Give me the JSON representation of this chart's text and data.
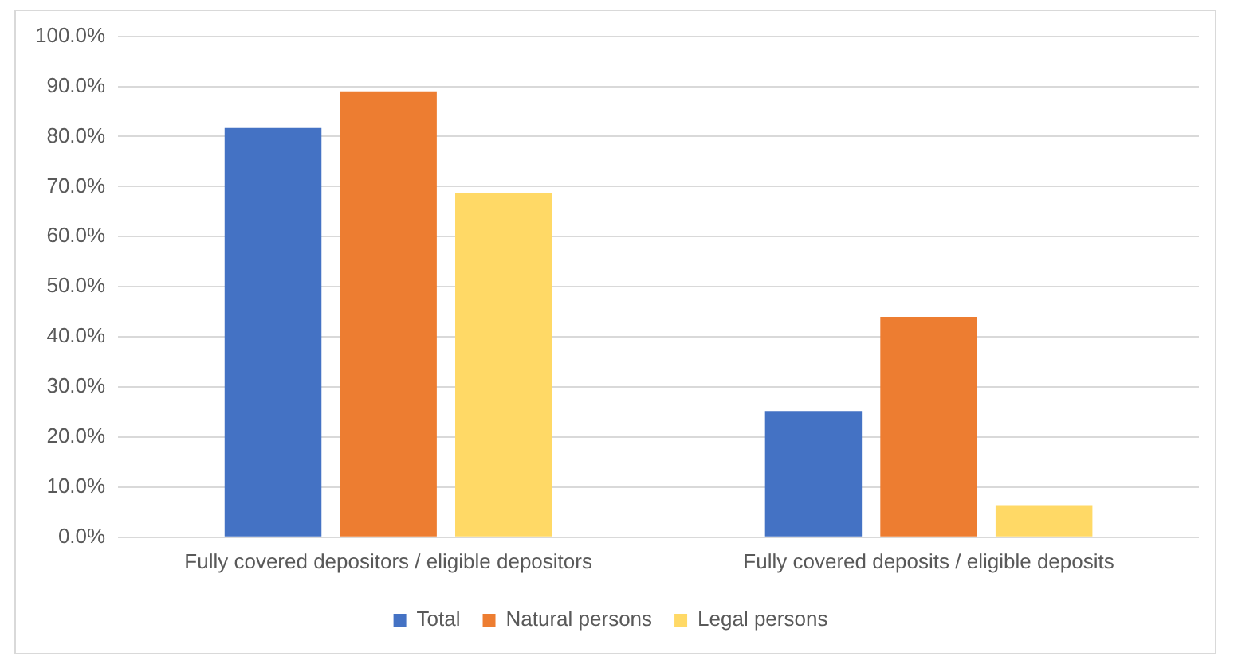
{
  "chart_data": {
    "type": "bar",
    "categories": [
      "Fully covered depositors / eligible depositors",
      "Fully covered deposits / eligible deposits"
    ],
    "series": [
      {
        "name": "Total",
        "color": "#4472c4",
        "values": [
          81.7,
          25.2
        ]
      },
      {
        "name": "Natural persons",
        "color": "#ed7d31",
        "values": [
          89.0,
          44.0
        ]
      },
      {
        "name": "Legal persons",
        "color": "#ffd966",
        "values": [
          68.8,
          6.4
        ]
      }
    ],
    "ylim": [
      0,
      100
    ],
    "yticks": [
      {
        "value": 0,
        "label": "0.0%"
      },
      {
        "value": 10,
        "label": "10.0%"
      },
      {
        "value": 20,
        "label": "20.0%"
      },
      {
        "value": 30,
        "label": "30.0%"
      },
      {
        "value": 40,
        "label": "40.0%"
      },
      {
        "value": 50,
        "label": "50.0%"
      },
      {
        "value": 60,
        "label": "60.0%"
      },
      {
        "value": 70,
        "label": "70.0%"
      },
      {
        "value": 80,
        "label": "80.0%"
      },
      {
        "value": 90,
        "label": "90.0%"
      },
      {
        "value": 100,
        "label": "100.0%"
      }
    ],
    "grid": "y",
    "legend": "bottom"
  }
}
